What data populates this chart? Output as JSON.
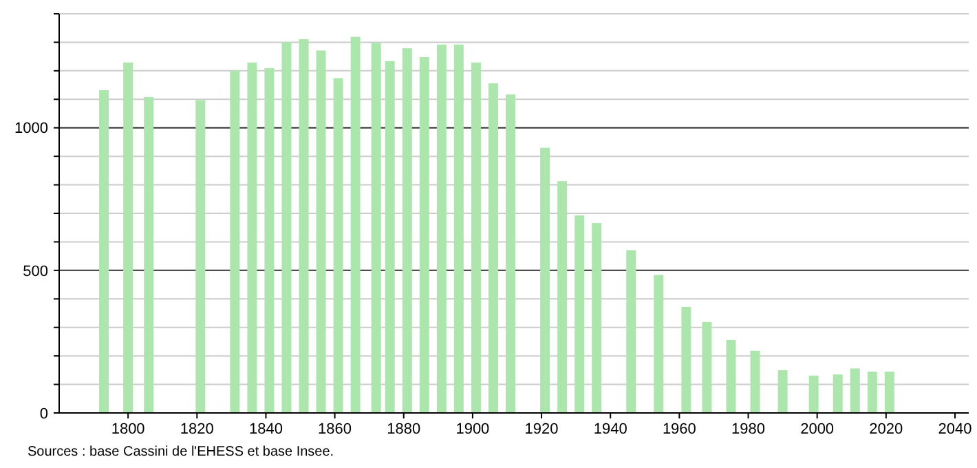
{
  "chart_data": {
    "type": "bar",
    "x": [
      1793,
      1800,
      1806,
      1821,
      1831,
      1836,
      1841,
      1846,
      1851,
      1856,
      1861,
      1866,
      1872,
      1876,
      1881,
      1886,
      1891,
      1896,
      1901,
      1906,
      1911,
      1921,
      1926,
      1931,
      1936,
      1946,
      1954,
      1962,
      1968,
      1975,
      1982,
      1990,
      1999,
      2006,
      2011,
      2016,
      2021
    ],
    "values": [
      1132,
      1229,
      1108,
      1097,
      1201,
      1229,
      1209,
      1301,
      1311,
      1271,
      1174,
      1319,
      1298,
      1234,
      1279,
      1248,
      1292,
      1292,
      1229,
      1156,
      1117,
      930,
      813,
      693,
      666,
      571,
      484,
      372,
      319,
      256,
      218,
      150,
      131,
      135,
      156,
      145,
      145
    ],
    "color": "#ade6ad",
    "xlim": [
      1780,
      2044
    ],
    "xticks": [
      1800,
      1820,
      1840,
      1860,
      1880,
      1900,
      1920,
      1940,
      1960,
      1980,
      2000,
      2020,
      2040
    ],
    "ylim": [
      0,
      1400
    ],
    "yticks": [
      0,
      {
        "value": 100,
        "label": null
      },
      {
        "value": 200,
        "label": null
      },
      {
        "value": 300,
        "label": null
      },
      {
        "value": 400,
        "label": null
      },
      500,
      {
        "value": 600,
        "label": null
      },
      {
        "value": 700,
        "label": null
      },
      {
        "value": 800,
        "label": null
      },
      {
        "value": 900,
        "label": null
      },
      1000,
      {
        "value": 1100,
        "label": null
      },
      {
        "value": 1200,
        "label": null
      },
      {
        "value": 1300,
        "label": null
      },
      {
        "value": 1400,
        "label": null
      }
    ],
    "grid": "y",
    "annotations": [
      "Sources : base Cassini de l'EHESS et base Insee."
    ]
  }
}
